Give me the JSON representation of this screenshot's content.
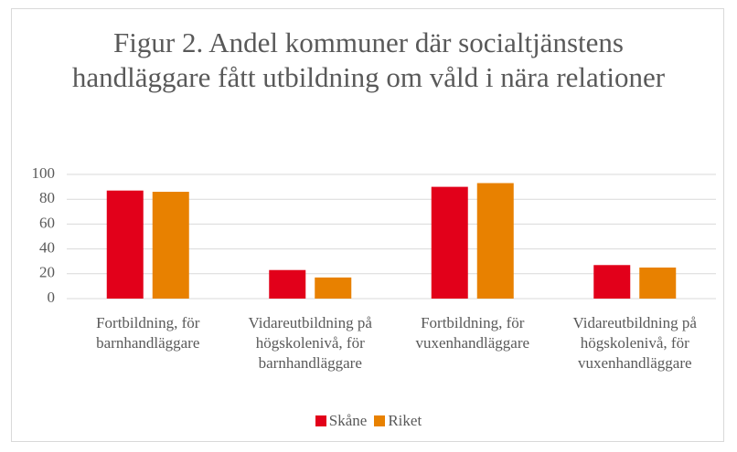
{
  "chart_data": {
    "type": "bar",
    "title": "Figur 2. Andel kommuner där socialtjänstens handläggare fått utbildning om våld i nära relationer",
    "categories": [
      "Fortbildning, för barnhandläggare",
      "Vidareutbildning på högskolenivå, för barnhandläggare",
      "Fortbildning, för vuxenhandläggare",
      "Vidareutbildning på högskolenivå, för vuxenhandläggare"
    ],
    "series": [
      {
        "name": "Skåne",
        "color": "#e2001a",
        "values": [
          87,
          23,
          90,
          27
        ]
      },
      {
        "name": "Riket",
        "color": "#e88100",
        "values": [
          86,
          17,
          93,
          25
        ]
      }
    ],
    "ylim": [
      0,
      100
    ],
    "yticks": [
      0,
      20,
      40,
      60,
      80,
      100
    ],
    "grid": true,
    "legend": "bottom"
  }
}
